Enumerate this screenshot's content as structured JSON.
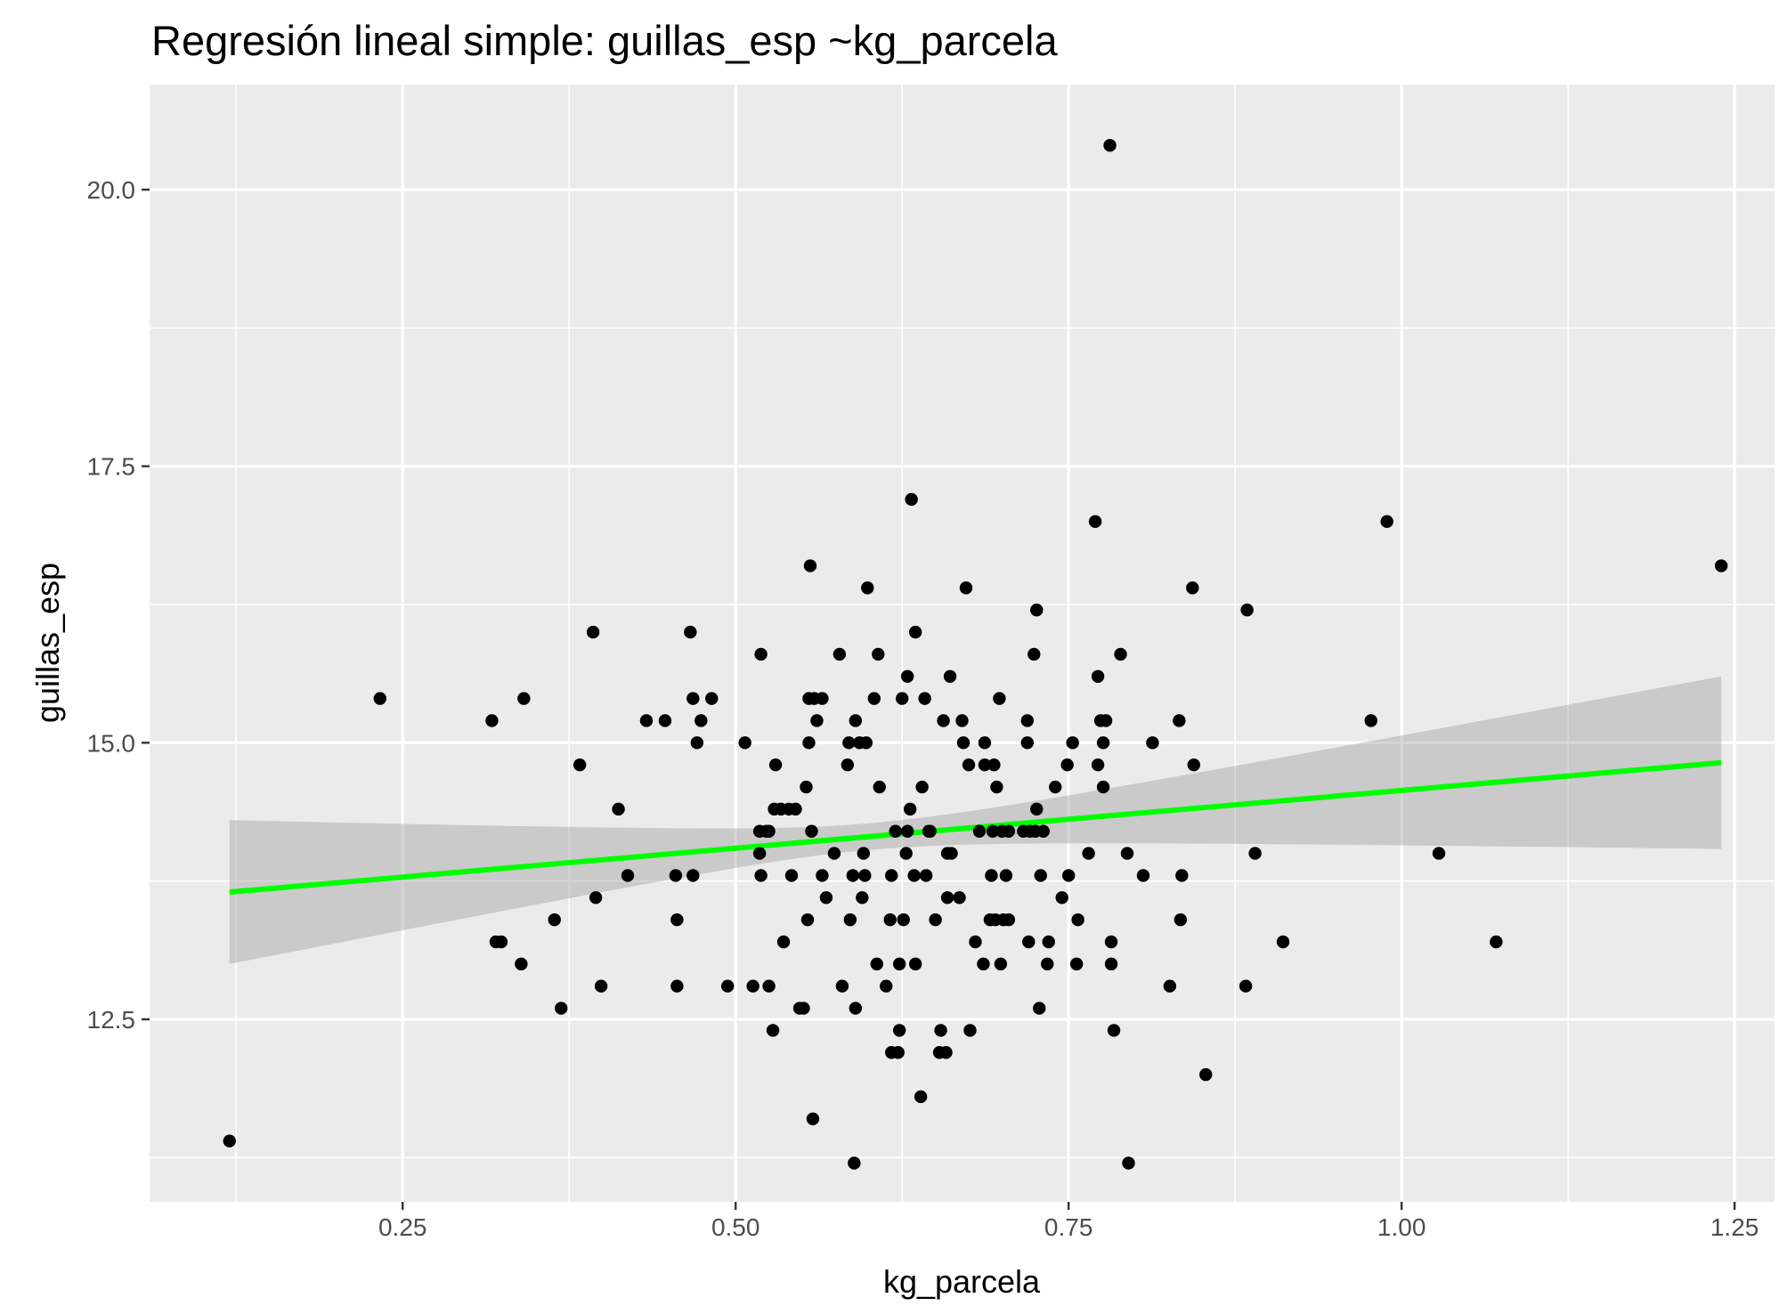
{
  "chart_data": {
    "type": "scatter",
    "title": "Regresión lineal simple:  guillas_esp ~kg_parcela",
    "xlabel": "kg_parcela",
    "ylabel": "guillas_esp",
    "xlim": [
      0.06,
      1.28
    ],
    "ylim": [
      10.85,
      20.95
    ],
    "x_ticks": [
      0.25,
      0.5,
      0.75,
      1.0,
      1.25
    ],
    "x_tick_labels": [
      "0.25",
      "0.50",
      "0.75",
      "1.00",
      "1.25"
    ],
    "y_ticks": [
      12.5,
      15.0,
      17.5,
      20.0
    ],
    "y_tick_labels": [
      "12.5",
      "15.0",
      "17.5",
      "20.0"
    ],
    "grid": true,
    "panel_background": "#ebebeb",
    "grid_color": "#ffffff",
    "point_color": "#000000",
    "line_color": "#00ff00",
    "band_color": "#999999",
    "regression": {
      "x": [
        0.12,
        1.24
      ],
      "y": [
        13.65,
        14.82
      ],
      "ci_upper": [
        14.3,
        15.6
      ],
      "ci_lower": [
        13.0,
        14.07
      ]
    },
    "points": [
      [
        0.12,
        11.4
      ],
      [
        0.233,
        15.4
      ],
      [
        0.317,
        15.2
      ],
      [
        0.32,
        13.2
      ],
      [
        0.324,
        13.2
      ],
      [
        0.341,
        15.4
      ],
      [
        0.339,
        13.0
      ],
      [
        0.364,
        13.4
      ],
      [
        0.369,
        12.6
      ],
      [
        0.383,
        14.8
      ],
      [
        0.393,
        16.0
      ],
      [
        0.395,
        13.6
      ],
      [
        0.399,
        12.8
      ],
      [
        0.412,
        14.4
      ],
      [
        0.419,
        13.8
      ],
      [
        0.433,
        15.2
      ],
      [
        0.447,
        15.2
      ],
      [
        0.455,
        13.8
      ],
      [
        0.456,
        13.4
      ],
      [
        0.456,
        12.8
      ],
      [
        0.466,
        16.0
      ],
      [
        0.468,
        15.4
      ],
      [
        0.468,
        13.8
      ],
      [
        0.471,
        15.0
      ],
      [
        0.474,
        15.2
      ],
      [
        0.482,
        15.4
      ],
      [
        0.494,
        12.8
      ],
      [
        0.507,
        15.0
      ],
      [
        0.513,
        12.8
      ],
      [
        0.518,
        14.0
      ],
      [
        0.518,
        14.2
      ],
      [
        0.519,
        13.8
      ],
      [
        0.519,
        15.8
      ],
      [
        0.523,
        14.2
      ],
      [
        0.525,
        14.2
      ],
      [
        0.525,
        12.8
      ],
      [
        0.528,
        12.4
      ],
      [
        0.529,
        14.4
      ],
      [
        0.53,
        14.8
      ],
      [
        0.534,
        14.4
      ],
      [
        0.536,
        13.2
      ],
      [
        0.54,
        14.4
      ],
      [
        0.542,
        13.8
      ],
      [
        0.545,
        14.4
      ],
      [
        0.548,
        12.6
      ],
      [
        0.551,
        12.6
      ],
      [
        0.553,
        14.6
      ],
      [
        0.554,
        13.4
      ],
      [
        0.555,
        15.0
      ],
      [
        0.555,
        15.4
      ],
      [
        0.556,
        16.6
      ],
      [
        0.557,
        14.2
      ],
      [
        0.558,
        11.6
      ],
      [
        0.559,
        15.4
      ],
      [
        0.561,
        15.2
      ],
      [
        0.565,
        15.4
      ],
      [
        0.565,
        13.8
      ],
      [
        0.568,
        13.6
      ],
      [
        0.574,
        14.0
      ],
      [
        0.578,
        15.8
      ],
      [
        0.58,
        12.8
      ],
      [
        0.584,
        14.8
      ],
      [
        0.585,
        15.0
      ],
      [
        0.586,
        13.4
      ],
      [
        0.588,
        13.8
      ],
      [
        0.589,
        11.2
      ],
      [
        0.59,
        15.2
      ],
      [
        0.59,
        12.6
      ],
      [
        0.593,
        15.0
      ],
      [
        0.595,
        13.6
      ],
      [
        0.596,
        14.0
      ],
      [
        0.597,
        13.8
      ],
      [
        0.598,
        15.0
      ],
      [
        0.599,
        16.4
      ],
      [
        0.604,
        15.4
      ],
      [
        0.606,
        13.0
      ],
      [
        0.607,
        15.8
      ],
      [
        0.608,
        14.6
      ],
      [
        0.613,
        12.8
      ],
      [
        0.616,
        13.4
      ],
      [
        0.617,
        13.8
      ],
      [
        0.617,
        12.2
      ],
      [
        0.62,
        14.2
      ],
      [
        0.622,
        12.2
      ],
      [
        0.623,
        12.4
      ],
      [
        0.623,
        13.0
      ],
      [
        0.625,
        15.4
      ],
      [
        0.626,
        13.4
      ],
      [
        0.628,
        14.0
      ],
      [
        0.629,
        15.6
      ],
      [
        0.629,
        14.2
      ],
      [
        0.631,
        14.4
      ],
      [
        0.632,
        17.2
      ],
      [
        0.634,
        13.8
      ],
      [
        0.635,
        16.0
      ],
      [
        0.635,
        13.0
      ],
      [
        0.639,
        11.8
      ],
      [
        0.64,
        14.6
      ],
      [
        0.642,
        15.4
      ],
      [
        0.643,
        13.8
      ],
      [
        0.645,
        14.2
      ],
      [
        0.646,
        14.2
      ],
      [
        0.65,
        13.4
      ],
      [
        0.653,
        12.2
      ],
      [
        0.654,
        12.4
      ],
      [
        0.656,
        15.2
      ],
      [
        0.658,
        12.2
      ],
      [
        0.659,
        13.6
      ],
      [
        0.659,
        14.0
      ],
      [
        0.661,
        15.6
      ],
      [
        0.662,
        14.0
      ],
      [
        0.668,
        13.6
      ],
      [
        0.67,
        15.2
      ],
      [
        0.671,
        15.0
      ],
      [
        0.673,
        16.4
      ],
      [
        0.675,
        14.8
      ],
      [
        0.676,
        12.4
      ],
      [
        0.68,
        13.2
      ],
      [
        0.683,
        14.2
      ],
      [
        0.686,
        13.0
      ],
      [
        0.687,
        14.8
      ],
      [
        0.687,
        15.0
      ],
      [
        0.691,
        13.4
      ],
      [
        0.692,
        13.8
      ],
      [
        0.693,
        14.2
      ],
      [
        0.694,
        14.8
      ],
      [
        0.695,
        13.4
      ],
      [
        0.696,
        14.6
      ],
      [
        0.698,
        15.4
      ],
      [
        0.699,
        13.0
      ],
      [
        0.7,
        14.2
      ],
      [
        0.701,
        13.4
      ],
      [
        0.703,
        13.8
      ],
      [
        0.705,
        13.4
      ],
      [
        0.705,
        14.2
      ],
      [
        0.716,
        14.2
      ],
      [
        0.719,
        15.0
      ],
      [
        0.719,
        15.2
      ],
      [
        0.72,
        13.2
      ],
      [
        0.721,
        14.2
      ],
      [
        0.724,
        15.8
      ],
      [
        0.725,
        14.2
      ],
      [
        0.726,
        14.4
      ],
      [
        0.726,
        16.2
      ],
      [
        0.728,
        12.6
      ],
      [
        0.729,
        13.8
      ],
      [
        0.731,
        14.2
      ],
      [
        0.734,
        13.0
      ],
      [
        0.735,
        13.2
      ],
      [
        0.74,
        14.6
      ],
      [
        0.745,
        13.6
      ],
      [
        0.749,
        14.8
      ],
      [
        0.75,
        13.8
      ],
      [
        0.753,
        15.0
      ],
      [
        0.756,
        13.0
      ],
      [
        0.757,
        13.4
      ],
      [
        0.765,
        14.0
      ],
      [
        0.77,
        17.0
      ],
      [
        0.772,
        15.6
      ],
      [
        0.772,
        14.8
      ],
      [
        0.774,
        15.2
      ],
      [
        0.776,
        14.6
      ],
      [
        0.776,
        15.0
      ],
      [
        0.778,
        15.2
      ],
      [
        0.781,
        20.4
      ],
      [
        0.782,
        13.2
      ],
      [
        0.782,
        13.0
      ],
      [
        0.784,
        12.4
      ],
      [
        0.789,
        15.8
      ],
      [
        0.794,
        14.0
      ],
      [
        0.795,
        11.2
      ],
      [
        0.806,
        13.8
      ],
      [
        0.813,
        15.0
      ],
      [
        0.826,
        12.8
      ],
      [
        0.833,
        15.2
      ],
      [
        0.834,
        13.4
      ],
      [
        0.835,
        13.8
      ],
      [
        0.843,
        16.4
      ],
      [
        0.844,
        14.8
      ],
      [
        0.853,
        12.0
      ],
      [
        0.883,
        12.8
      ],
      [
        0.884,
        16.2
      ],
      [
        0.89,
        14.0
      ],
      [
        0.911,
        13.2
      ],
      [
        0.977,
        15.2
      ],
      [
        0.989,
        17.0
      ],
      [
        1.028,
        14.0
      ],
      [
        1.071,
        13.2
      ],
      [
        1.24,
        16.6
      ]
    ]
  }
}
